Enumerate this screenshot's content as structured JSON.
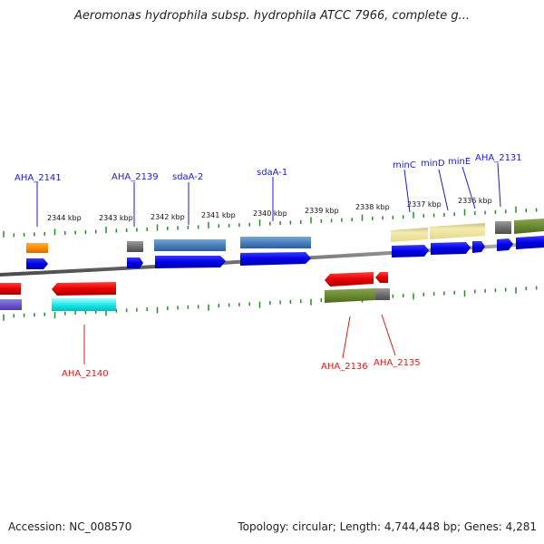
{
  "title": "Aeromonas hydrophila subsp. hydrophila ATCC 7966, complete g...",
  "accession": "Accession: NC_008570",
  "summary": "Topology: circular; Length: 4,744,448 bp; Genes: 4,281",
  "colors": {
    "backbone": "#808080",
    "tick": "#2a8a2a",
    "top_label": "#1a1adf",
    "bottom_label": "#e01818"
  },
  "kbp_labels": [
    "2344 kbp",
    "2343 kbp",
    "2342 kbp",
    "2341 kbp",
    "2340 kbp",
    "2339 kbp",
    "2338 kbp",
    "2337 kbp",
    "2336 kbp"
  ],
  "top_labels": [
    "AHA_2141",
    "AHA_2139",
    "sdaA-2",
    "sdaA-1",
    "minC",
    "minD",
    "minE",
    "AHA_2131"
  ],
  "bottom_labels": [
    "AHA_2140",
    "AHA_2136",
    "AHA_2135"
  ]
}
